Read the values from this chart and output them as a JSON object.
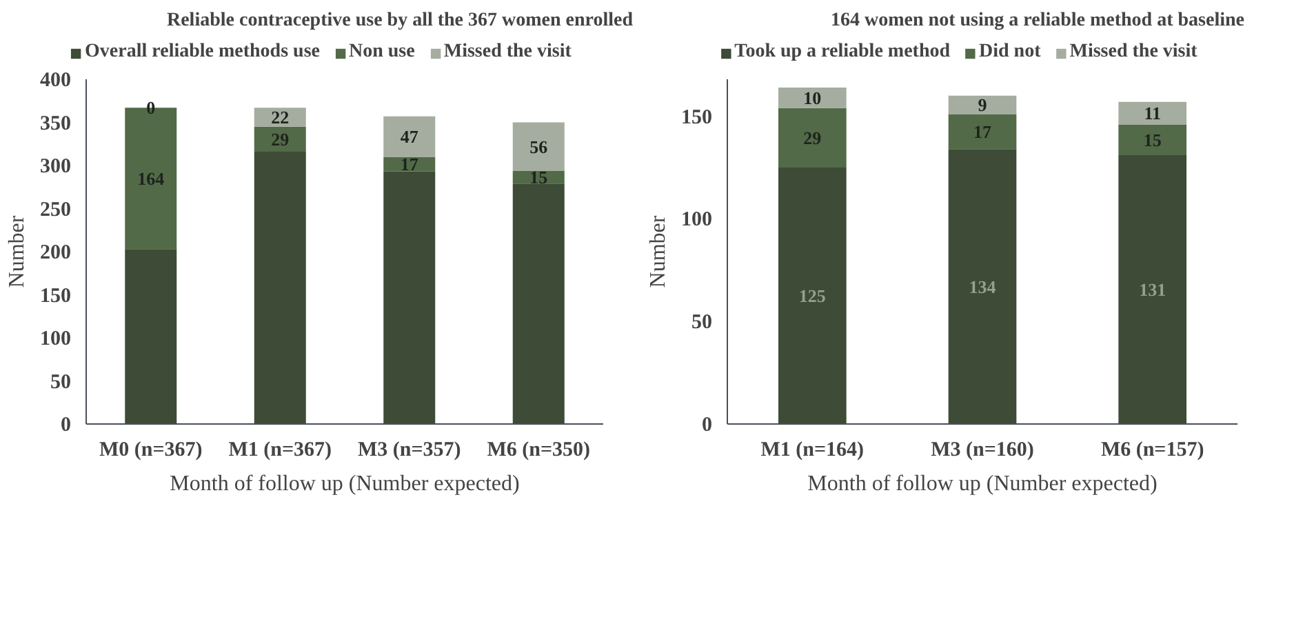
{
  "chart_data": [
    {
      "type": "bar",
      "title": "Reliable contraceptive use by all the 367 women enrolled",
      "xlabel": "Month of follow up (Number expected)",
      "ylabel": "Number",
      "categories": [
        "M0 (n=367)",
        "M1 (n=367)",
        "M3 (n=357)",
        "M6 (n=350)"
      ],
      "stacked": true,
      "ylim": [
        0,
        400
      ],
      "yticks": [
        0,
        50,
        100,
        150,
        200,
        250,
        300,
        350,
        400
      ],
      "grid": false,
      "legend": "top",
      "series": [
        {
          "name": "Overall reliable methods use",
          "color": "#3d4b37",
          "values": [
            203,
            316,
            293,
            279
          ]
        },
        {
          "name": "Non use",
          "color": "#526a47",
          "values": [
            164,
            29,
            17,
            15
          ],
          "value_labels": [
            "164",
            "29",
            "17",
            "15"
          ]
        },
        {
          "name": "Missed the visit",
          "color": "#a4ad9f",
          "values": [
            0,
            22,
            47,
            56
          ],
          "value_labels": [
            "0",
            "22",
            "47",
            "56"
          ]
        }
      ]
    },
    {
      "type": "bar",
      "title": "164 women not using a reliable method at baseline",
      "xlabel": "Month of follow up (Number expected)",
      "ylabel": "Number",
      "categories": [
        "M1 (n=164)",
        "M3 (n=160)",
        "M6 (n=157)"
      ],
      "stacked": true,
      "ylim": [
        0,
        168
      ],
      "yticks": [
        0,
        50,
        100,
        150
      ],
      "grid": false,
      "legend": "top",
      "series": [
        {
          "name": "Took up a reliable method",
          "color": "#3d4b37",
          "values": [
            125,
            134,
            131
          ],
          "value_labels": [
            "125",
            "134",
            "131"
          ]
        },
        {
          "name": "Did not",
          "color": "#526a47",
          "values": [
            29,
            17,
            15
          ],
          "value_labels": [
            "29",
            "17",
            "15"
          ]
        },
        {
          "name": "Missed the visit",
          "color": "#a4ad9f",
          "values": [
            10,
            9,
            11
          ],
          "value_labels": [
            "10",
            "9",
            "11"
          ]
        }
      ]
    }
  ]
}
